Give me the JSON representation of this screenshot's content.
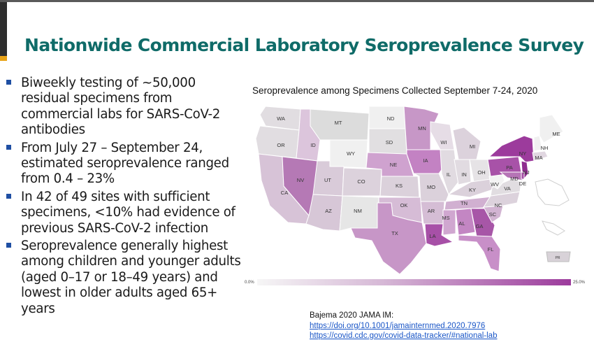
{
  "slide": {
    "title": "Nationwide Commercial Laboratory Seroprevalence Survey",
    "bullets": [
      "Biweekly testing of ~50,000 residual specimens from commercial labs for SARS-CoV-2 antibodies",
      "From July 27 – September 24, estimated seroprevalence ranged from 0.4 – 23%",
      "In 42 of 49 sites with sufficient specimens, <10% had evidence of previous SARS-CoV-2 infection",
      "Seroprevalence generally highest among children and younger adults (aged 0–17 or 18–49 years) and lowest in older adults aged 65+ years"
    ],
    "citation": "Bajema 2020 JAMA IM:",
    "citation_link": "https://doi.org/10.1001/jamainternmed.2020.7976",
    "citation_link2": "https://covid.cdc.gov/covid-data-tracker/#national-lab"
  },
  "map": {
    "title": "Seroprevalence among Specimens Collected September 7-24, 2020",
    "scale_min": "0.0%",
    "scale_max": "25.0%",
    "color_low": "#f6f6f6",
    "color_high": "#9c3b9c",
    "states": [
      "WA",
      "OR",
      "CA",
      "ID",
      "NV",
      "MT",
      "WY",
      "UT",
      "AZ",
      "CO",
      "NM",
      "ND",
      "SD",
      "NE",
      "KS",
      "OK",
      "TX",
      "MN",
      "IA",
      "MO",
      "AR",
      "LA",
      "WI",
      "IL",
      "MI",
      "IN",
      "OH",
      "KY",
      "TN",
      "MS",
      "AL",
      "GA",
      "FL",
      "SC",
      "NC",
      "VA",
      "WV",
      "PA",
      "NY",
      "ME",
      "NH",
      "MA",
      "MD",
      "DE",
      "NJ",
      "PR"
    ]
  }
}
